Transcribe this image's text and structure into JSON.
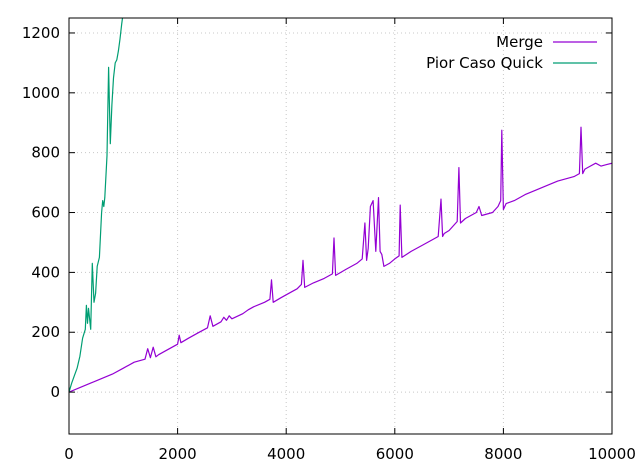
{
  "chart_data": {
    "type": "line",
    "title": "",
    "xlabel": "",
    "ylabel": "",
    "xlim": [
      0,
      10000
    ],
    "ylim": [
      -140,
      1250
    ],
    "xticks": [
      0,
      2000,
      4000,
      6000,
      8000,
      10000
    ],
    "yticks": [
      0,
      200,
      400,
      600,
      800,
      1000,
      1200
    ],
    "xtick_labels": [
      "0",
      "2000",
      "4000",
      "6000",
      "8000",
      "10000"
    ],
    "ytick_labels": [
      "0",
      "200",
      "400",
      "600",
      "800",
      "1000",
      "1200"
    ],
    "grid": true,
    "legend_position": "top-right",
    "series": [
      {
        "name": "Merge",
        "color": "#9400d3",
        "x": [
          0,
          200,
          400,
          600,
          800,
          1000,
          1200,
          1400,
          1450,
          1500,
          1550,
          1600,
          1650,
          1800,
          2000,
          2030,
          2060,
          2200,
          2400,
          2550,
          2600,
          2650,
          2800,
          2850,
          2900,
          2950,
          3000,
          3200,
          3300,
          3400,
          3600,
          3700,
          3730,
          3760,
          3900,
          4000,
          4100,
          4200,
          4280,
          4310,
          4340,
          4500,
          4700,
          4850,
          4880,
          4910,
          5100,
          5300,
          5400,
          5450,
          5480,
          5510,
          5550,
          5600,
          5650,
          5700,
          5730,
          5760,
          5800,
          5900,
          6000,
          6080,
          6100,
          6130,
          6300,
          6500,
          6700,
          6800,
          6850,
          6880,
          6910,
          7000,
          7100,
          7150,
          7180,
          7210,
          7300,
          7500,
          7550,
          7600,
          7800,
          7900,
          7950,
          7970,
          8000,
          8050,
          8200,
          8400,
          8600,
          8800,
          9000,
          9200,
          9300,
          9400,
          9430,
          9460,
          9500,
          9600,
          9700,
          9800,
          9900,
          10000
        ],
        "values": [
          0,
          15,
          30,
          45,
          60,
          80,
          100,
          110,
          145,
          115,
          150,
          118,
          125,
          140,
          160,
          190,
          165,
          180,
          200,
          215,
          255,
          220,
          235,
          250,
          240,
          255,
          245,
          262,
          275,
          285,
          300,
          310,
          375,
          300,
          315,
          325,
          335,
          345,
          360,
          440,
          350,
          365,
          380,
          395,
          515,
          390,
          410,
          430,
          445,
          565,
          440,
          480,
          620,
          640,
          470,
          650,
          470,
          460,
          420,
          430,
          445,
          455,
          625,
          450,
          470,
          490,
          510,
          520,
          645,
          520,
          530,
          540,
          560,
          570,
          750,
          565,
          580,
          600,
          620,
          590,
          600,
          620,
          640,
          875,
          610,
          630,
          640,
          660,
          675,
          690,
          705,
          715,
          720,
          730,
          885,
          730,
          745,
          755,
          765,
          755,
          760,
          765
        ]
      },
      {
        "name": "Pior Caso Quick",
        "color": "#009e73",
        "x": [
          0,
          50,
          100,
          150,
          200,
          250,
          300,
          320,
          340,
          360,
          400,
          430,
          460,
          490,
          520,
          560,
          600,
          620,
          640,
          660,
          700,
          730,
          760,
          790,
          820,
          850,
          880,
          910,
          940,
          970,
          1000
        ],
        "values": [
          0,
          30,
          55,
          80,
          120,
          180,
          210,
          290,
          230,
          280,
          210,
          430,
          300,
          330,
          420,
          450,
          600,
          640,
          620,
          650,
          790,
          1085,
          830,
          960,
          1050,
          1100,
          1110,
          1140,
          1180,
          1230,
          1270
        ]
      }
    ]
  }
}
